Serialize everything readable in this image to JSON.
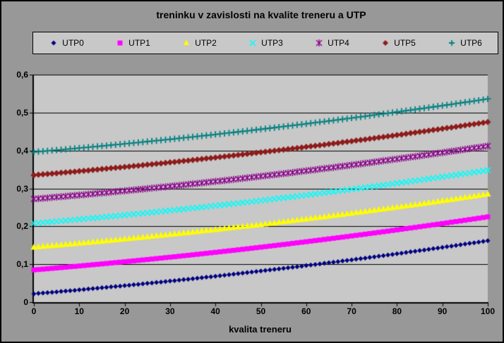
{
  "window": {
    "background": "#989898",
    "border_color": "#000000"
  },
  "title": "treninku v zavislosti na kvalite treneru a UTP",
  "x_axis": {
    "label": "kvalita treneru",
    "tick_labels": [
      "0",
      "10",
      "20",
      "30",
      "40",
      "50",
      "60",
      "70",
      "80",
      "90",
      "100"
    ],
    "tick_values": [
      0,
      10,
      20,
      30,
      40,
      50,
      60,
      70,
      80,
      90,
      100
    ]
  },
  "y_axis": {
    "tick_labels": [
      "0",
      "0,1",
      "0,2",
      "0,3",
      "0,4",
      "0,5",
      "0,6"
    ],
    "tick_values": [
      0,
      0.1,
      0.2,
      0.3,
      0.4,
      0.5,
      0.6
    ]
  },
  "plot": {
    "background": "#C8C8C8",
    "gridline_color": "#000000",
    "axis_color": "#000000"
  },
  "legend": {
    "background": "#C8C8C8",
    "border_color": "#000000",
    "position": "top"
  },
  "chart_data": {
    "type": "scatter",
    "title": "treninku v zavislosti na kvalite treneru a UTP",
    "xlabel": "kvalita treneru",
    "ylabel": "",
    "xlim": [
      0,
      100
    ],
    "ylim": [
      0,
      0.6
    ],
    "x_tick_interval": 10,
    "y_tick_interval": 0.1,
    "grid": "horizontal",
    "legend_position": "top",
    "decimal_separator": ",",
    "x": {
      "start": 0,
      "end": 100,
      "step": 1
    },
    "series": [
      {
        "name": "UTP0",
        "color": "#000080",
        "marker": "diamond",
        "marker_size": 7,
        "y_start": 0.022,
        "y_mid": 0.082,
        "y_end": 0.162
      },
      {
        "name": "UTP1",
        "color": "#FF00FF",
        "marker": "square",
        "marker_size": 7,
        "y_start": 0.085,
        "y_mid": 0.145,
        "y_end": 0.225
      },
      {
        "name": "UTP2",
        "color": "#FFFF00",
        "marker": "triangle",
        "marker_size": 9,
        "y_start": 0.145,
        "y_mid": 0.205,
        "y_end": 0.285
      },
      {
        "name": "UTP3",
        "color": "#00FFFF",
        "marker": "x",
        "marker_size": 8,
        "y_start": 0.208,
        "y_mid": 0.268,
        "y_end": 0.348
      },
      {
        "name": "UTP4",
        "color": "#8B008B",
        "marker": "star",
        "marker_size": 8,
        "y_start": 0.272,
        "y_mid": 0.332,
        "y_end": 0.412
      },
      {
        "name": "UTP5",
        "color": "#8E1B1B",
        "marker": "diamond",
        "marker_size": 9,
        "y_start": 0.335,
        "y_mid": 0.395,
        "y_end": 0.475
      },
      {
        "name": "UTP6",
        "color": "#008080",
        "marker": "plus",
        "marker_size": 9,
        "y_start": 0.396,
        "y_mid": 0.456,
        "y_end": 0.536
      }
    ],
    "growth_curve": {
      "description": "y_i(x) = series[i].y_start + growth[x] for x = 0..100 step 1 (all seven series share the same increasing convex growth; growth(x) ~ 0.001*x + 0.000004*x^2)",
      "values": [
        0,
        0.001,
        0.002,
        0.003,
        0.0041,
        0.0051,
        0.0061,
        0.0072,
        0.0083,
        0.0093,
        0.0104,
        0.0115,
        0.0126,
        0.0137,
        0.0148,
        0.0159,
        0.017,
        0.0182,
        0.0193,
        0.0204,
        0.0216,
        0.0228,
        0.0239,
        0.0251,
        0.0263,
        0.0275,
        0.0287,
        0.0299,
        0.0311,
        0.0324,
        0.0336,
        0.0348,
        0.0361,
        0.0374,
        0.0386,
        0.0399,
        0.0412,
        0.0425,
        0.0438,
        0.0451,
        0.0464,
        0.0477,
        0.0491,
        0.0504,
        0.0517,
        0.0531,
        0.0545,
        0.0558,
        0.0572,
        0.0586,
        0.06,
        0.0614,
        0.0628,
        0.0642,
        0.0657,
        0.0671,
        0.0685,
        0.07,
        0.0715,
        0.0729,
        0.0744,
        0.0759,
        0.0774,
        0.0789,
        0.0804,
        0.0819,
        0.0834,
        0.085,
        0.0865,
        0.088,
        0.0896,
        0.0912,
        0.0927,
        0.0943,
        0.0959,
        0.0975,
        0.0991,
        0.1007,
        0.1023,
        0.104,
        0.1056,
        0.1072,
        0.1089,
        0.1106,
        0.1122,
        0.1139,
        0.1156,
        0.1173,
        0.119,
        0.1207,
        0.1224,
        0.1241,
        0.1259,
        0.1276,
        0.1293,
        0.1311,
        0.1329,
        0.1346,
        0.1364,
        0.1382,
        0.14
      ]
    }
  }
}
